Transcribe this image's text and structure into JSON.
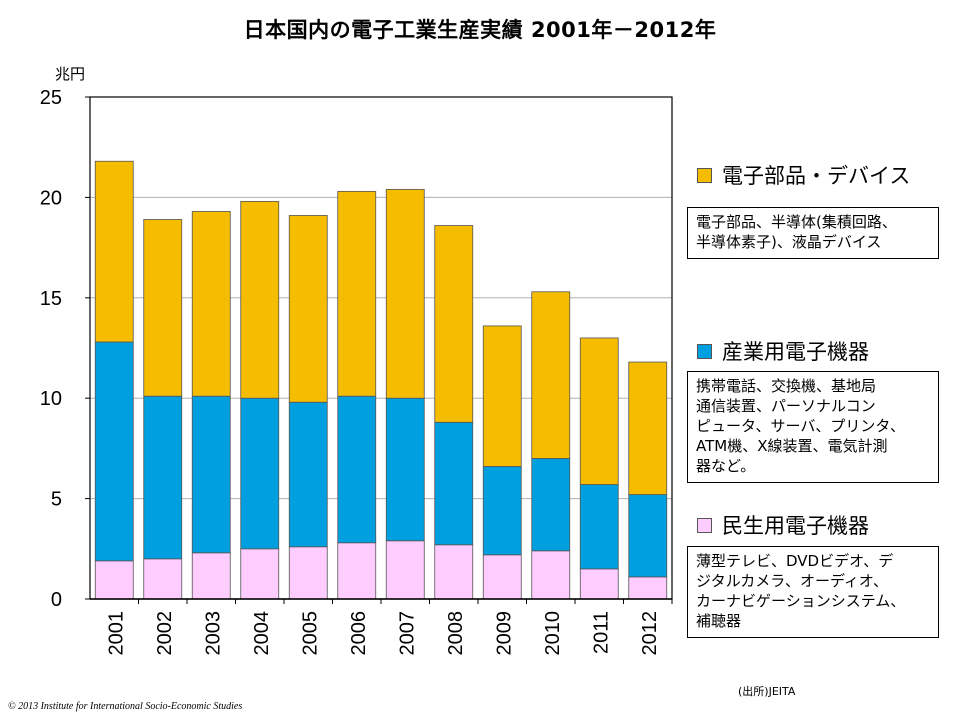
{
  "title": "日本国内の電子工業生産実績  2001年－2012年",
  "unit_label": "兆円",
  "legend": [
    {
      "label": "電子部品・デバイス",
      "color": "#F5BC00",
      "description": "電子部品、半導体(集積回路、\n半導体素子)、液晶デバイス"
    },
    {
      "label": "産業用電子機器",
      "color": "#00A0E0",
      "description": "携帯電話、交換機、基地局\n通信装置、パーソナルコン\nピュータ、サーバ、プリンタ、\nATM機、X線装置、電気計測\n器など。"
    },
    {
      "label": "民生用電子機器",
      "color": "#FFCCFF",
      "description": "薄型テレビ、DVDビデオ、デ\nジタルカメラ、オーディオ、\nカーナビゲーションシステム、\n補聴器"
    }
  ],
  "source": "(出所)JEITA",
  "copyright": "© 2013 Institute for International Socio-Economic Studies",
  "chart_data": {
    "type": "bar",
    "stacked": true,
    "title": "日本国内の電子工業生産実績  2001年－2012年",
    "ylabel": "兆円",
    "ylim": [
      0,
      25
    ],
    "yticks": [
      0,
      5,
      10,
      15,
      20,
      25
    ],
    "grid": true,
    "legend_position": "right",
    "categories": [
      "2001",
      "2002",
      "2003",
      "2004",
      "2005",
      "2006",
      "2007",
      "2008",
      "2009",
      "2010",
      "2011",
      "2012"
    ],
    "series": [
      {
        "name": "民生用電子機器",
        "color": "#FFCCFF",
        "values": [
          1.9,
          2.0,
          2.3,
          2.5,
          2.6,
          2.8,
          2.9,
          2.7,
          2.2,
          2.4,
          1.5,
          1.1
        ]
      },
      {
        "name": "産業用電子機器",
        "color": "#00A0E0",
        "values": [
          10.9,
          8.1,
          7.8,
          7.5,
          7.2,
          7.3,
          7.1,
          6.1,
          4.4,
          4.6,
          4.2,
          4.1
        ]
      },
      {
        "name": "電子部品・デバイス",
        "color": "#F5BC00",
        "values": [
          9.0,
          8.8,
          9.2,
          9.8,
          9.3,
          10.2,
          10.4,
          9.8,
          7.0,
          8.3,
          7.3,
          6.6
        ]
      }
    ]
  }
}
